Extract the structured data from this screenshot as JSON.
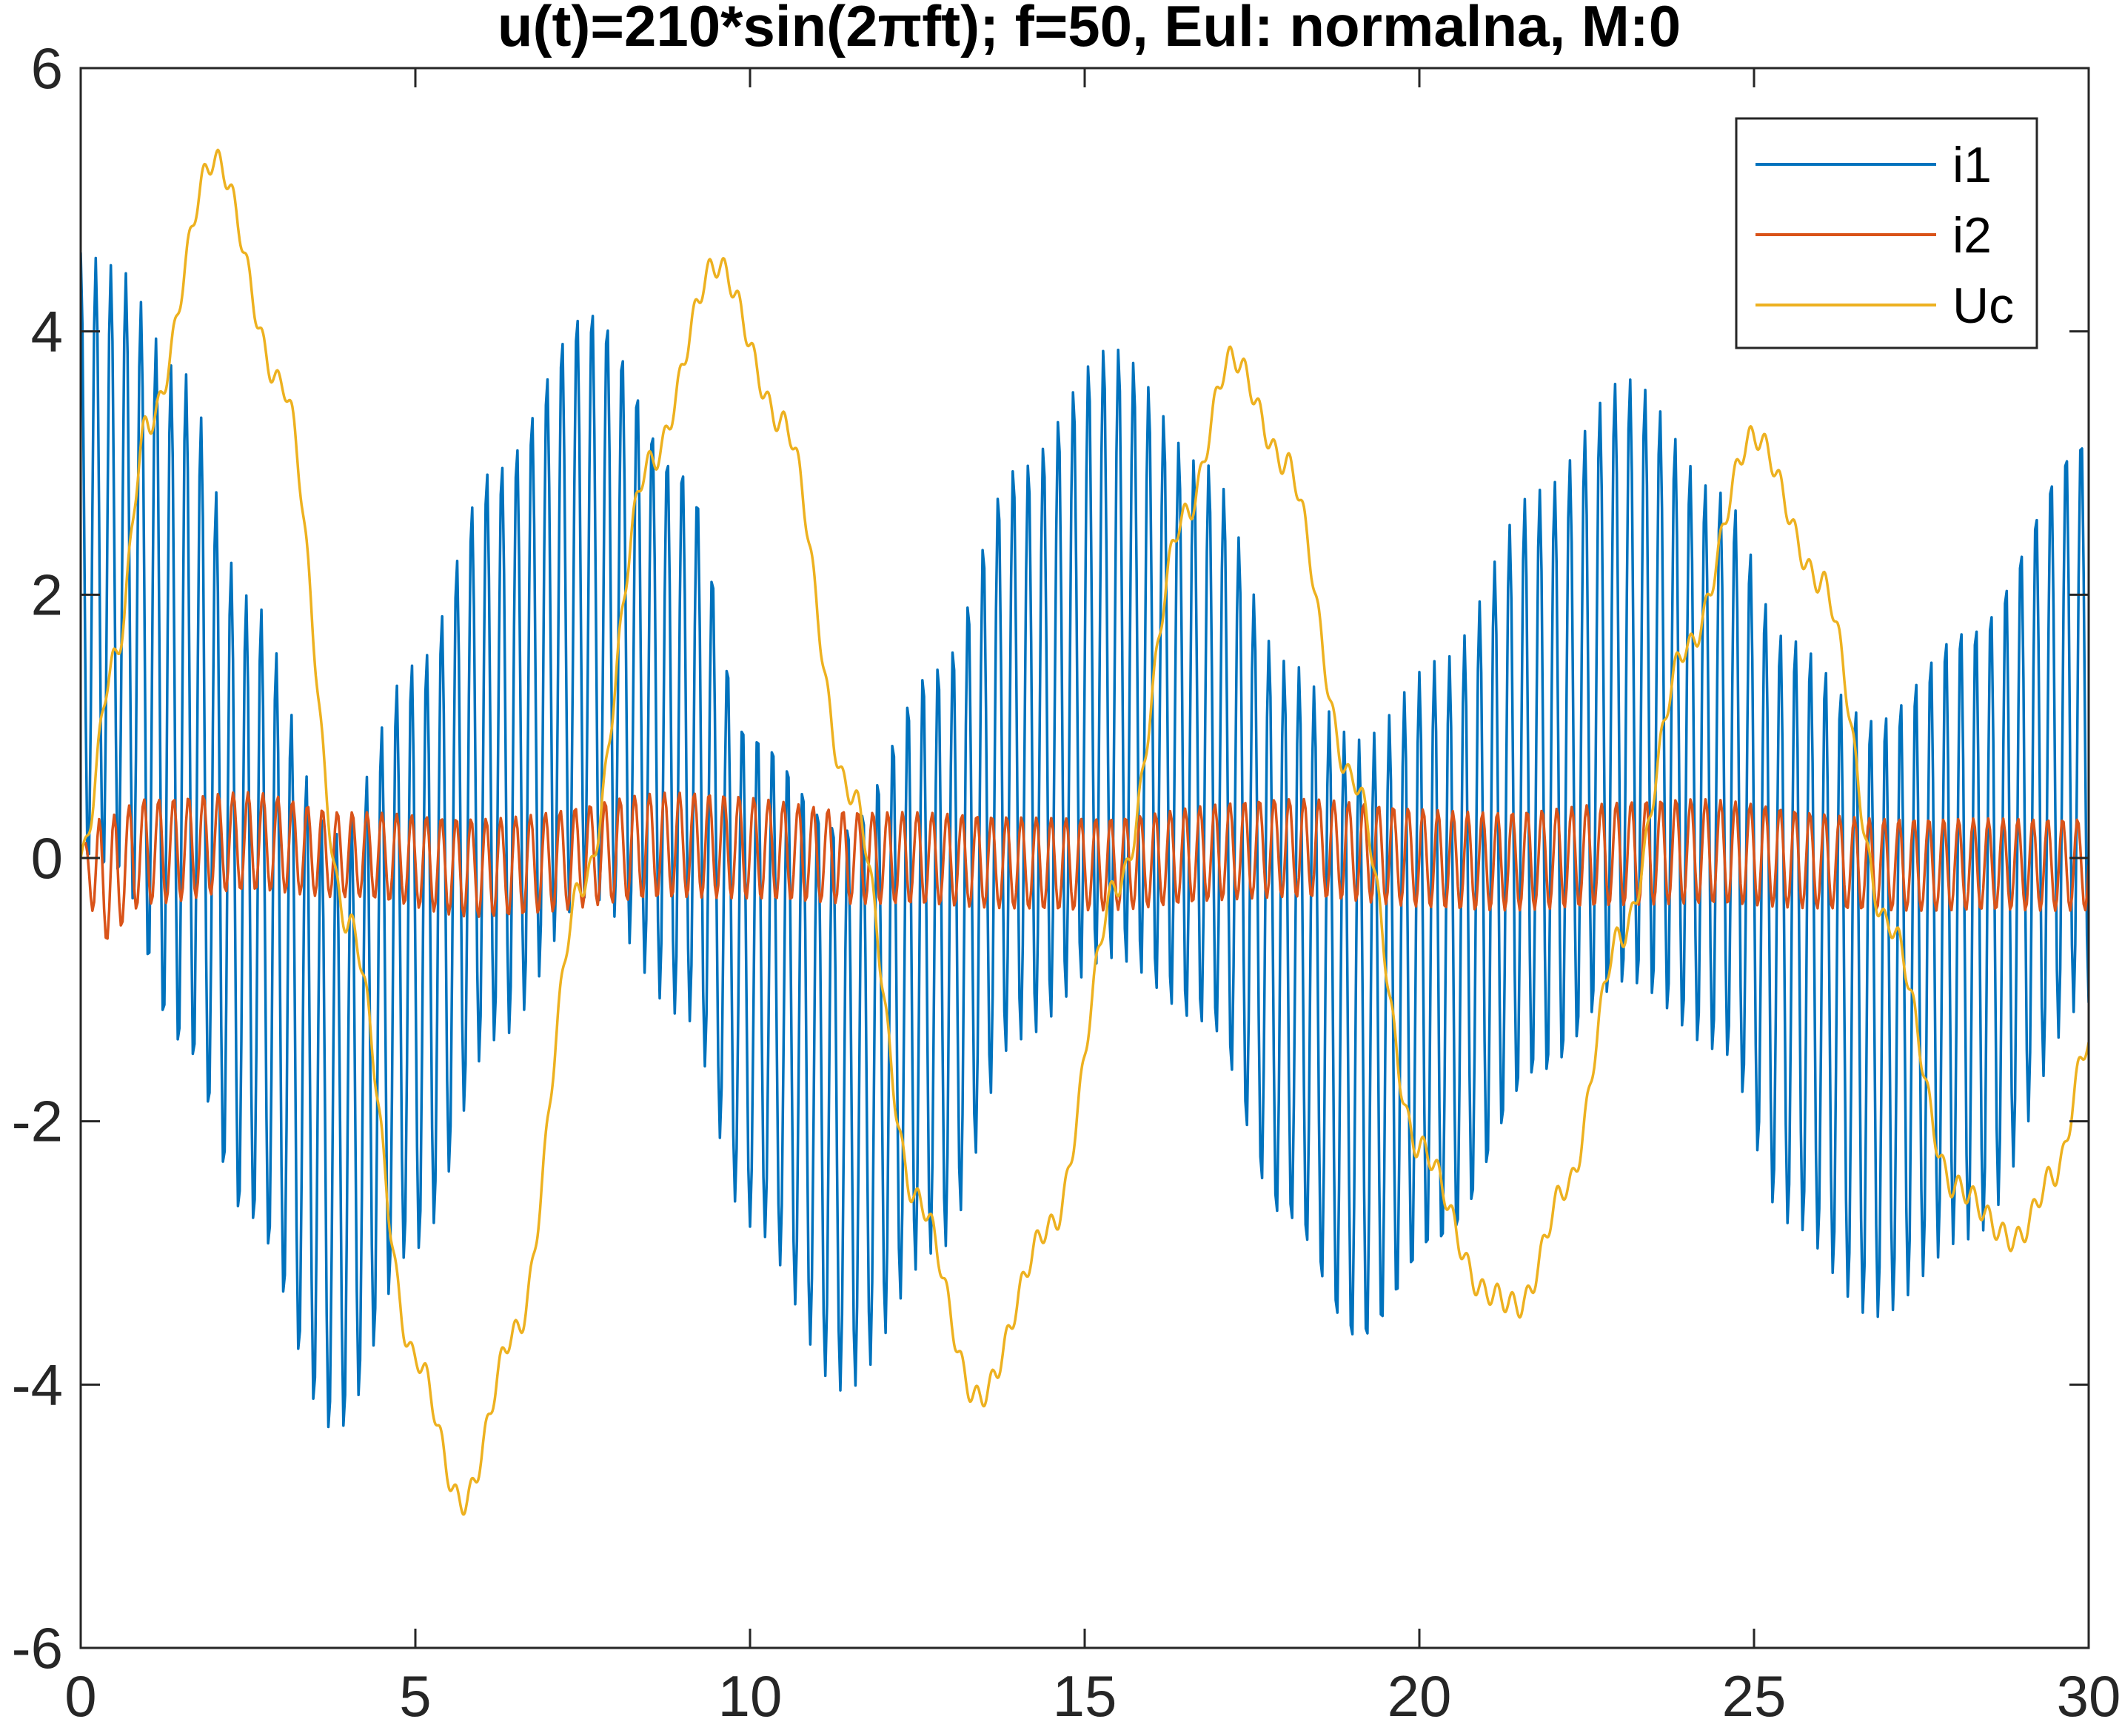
{
  "chart_data": {
    "type": "line",
    "title": "u(t)=210*sin(2πft); f=50, Eul: normalna, M:0",
    "xlabel": "",
    "ylabel": "",
    "xlim": [
      0,
      30
    ],
    "ylim": [
      -6,
      6
    ],
    "xticks": [
      0,
      5,
      10,
      15,
      20,
      25,
      30
    ],
    "yticks": [
      -6,
      -4,
      -2,
      0,
      2,
      4,
      6
    ],
    "x_tick_labels": [
      "0",
      "5",
      "10",
      "15",
      "20",
      "25",
      "30"
    ],
    "y_tick_labels": [
      "-6",
      "-4",
      "-2",
      "0",
      "2",
      "4",
      "6"
    ],
    "grid": false,
    "legend_position": "top-right",
    "sample_step": 0.05,
    "series": [
      {
        "name": "i1",
        "color": "#0072BD",
        "envelope_x": [
          0,
          0.5,
          1.5,
          2.5,
          3.8,
          5.0,
          6.2,
          7.6,
          9.0,
          10.0,
          11.4,
          12.8,
          14.0,
          15.4,
          16.8,
          18.0,
          19.1,
          20.3,
          21.8,
          23.1,
          24.5,
          25.5,
          26.8,
          28.2,
          30.0
        ],
        "envelope_upper": [
          4.6,
          4.5,
          3.7,
          2.0,
          0.2,
          1.5,
          3.0,
          4.2,
          3.0,
          1.0,
          0.3,
          1.5,
          3.0,
          3.9,
          3.0,
          1.5,
          0.9,
          1.5,
          2.8,
          3.65,
          2.8,
          1.7,
          1.1,
          1.8,
          3.25
        ],
        "envelope_lower": [
          -0.1,
          -0.2,
          -1.5,
          -2.8,
          -4.4,
          -3.0,
          -1.4,
          -0.3,
          -1.2,
          -2.8,
          -4.05,
          -3.0,
          -1.4,
          -0.8,
          -1.3,
          -2.8,
          -3.75,
          -3.0,
          -1.7,
          -1.0,
          -1.5,
          -2.8,
          -3.5,
          -2.9,
          -1.1
        ]
      },
      {
        "name": "i2",
        "color": "#D95319",
        "envelope_x": [
          0,
          0.3,
          1.0,
          2.5,
          4.0,
          6.0,
          9.0,
          12.0,
          15.0,
          18.0,
          21.0,
          24.0,
          27.0,
          30.0
        ],
        "envelope_upper": [
          0.1,
          0.3,
          0.45,
          0.5,
          0.35,
          0.3,
          0.5,
          0.35,
          0.3,
          0.45,
          0.35,
          0.45,
          0.3,
          0.3
        ],
        "envelope_lower": [
          0.0,
          -0.65,
          -0.35,
          -0.25,
          -0.3,
          -0.45,
          -0.3,
          -0.35,
          -0.4,
          -0.3,
          -0.4,
          -0.35,
          -0.4,
          -0.4
        ]
      },
      {
        "name": "Uc",
        "color": "#EDB120",
        "x": [
          0,
          0.5,
          1.0,
          2.0,
          3.0,
          4.0,
          5.0,
          5.7,
          6.5,
          7.5,
          8.5,
          9.5,
          10.5,
          11.5,
          12.5,
          13.4,
          14.5,
          15.5,
          16.5,
          17.2,
          18.0,
          19.0,
          20.0,
          21.0,
          21.5,
          22.2,
          23.0,
          24.0,
          25.0,
          26.0,
          27.0,
          28.0,
          28.9,
          29.5,
          30.0
        ],
        "y": [
          0.0,
          1.5,
          3.3,
          5.3,
          3.6,
          -0.5,
          -3.8,
          -4.9,
          -3.6,
          -0.2,
          3.0,
          4.5,
          3.3,
          0.5,
          -2.6,
          -4.1,
          -2.8,
          -0.2,
          2.6,
          3.8,
          3.0,
          0.6,
          -2.2,
          -3.3,
          -3.4,
          -2.5,
          -0.6,
          1.6,
          3.2,
          2.1,
          -0.5,
          -2.5,
          -2.9,
          -2.4,
          -1.4
        ]
      }
    ]
  }
}
